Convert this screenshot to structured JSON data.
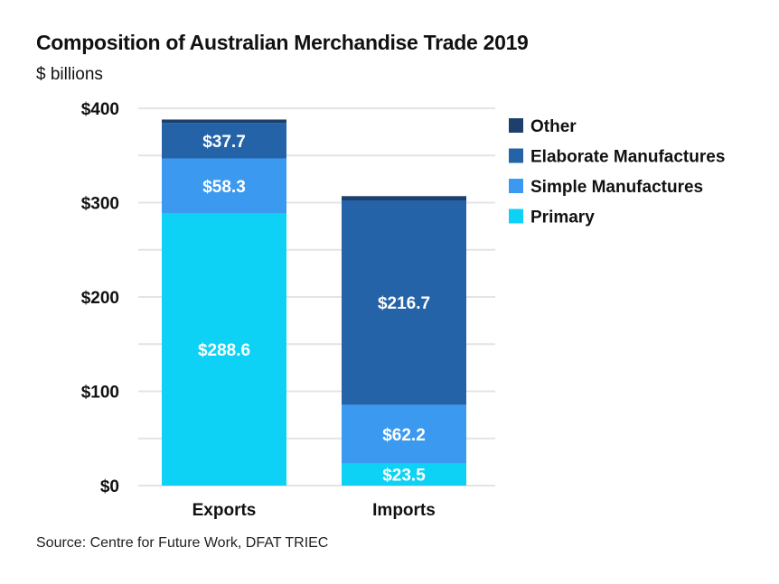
{
  "title": "Composition of Australian Merchandise Trade 2019",
  "subtitle": "$ billions",
  "source": "Source: Centre for Future Work, DFAT TRIEC",
  "chart_data": {
    "type": "bar",
    "stacked": true,
    "categories": [
      "Exports",
      "Imports"
    ],
    "series": [
      {
        "name": "Primary",
        "values": [
          288.6,
          23.5
        ],
        "labels": [
          "$288.6",
          "$23.5"
        ],
        "color": "#0dd2f5"
      },
      {
        "name": "Simple Manufactures",
        "values": [
          58.3,
          62.2
        ],
        "labels": [
          "$58.3",
          "$62.2"
        ],
        "color": "#3b9af0"
      },
      {
        "name": "Elaborate Manufactures",
        "values": [
          37.7,
          216.7
        ],
        "labels": [
          "$37.7",
          "$216.7"
        ],
        "color": "#2563a8"
      },
      {
        "name": "Other",
        "values": [
          3.5,
          4.5
        ],
        "labels": [
          "",
          ""
        ],
        "color": "#1c3f6b"
      }
    ],
    "legend_order": [
      "Other",
      "Elaborate Manufactures",
      "Simple Manufactures",
      "Primary"
    ],
    "legend_position": "top-right",
    "ylim": [
      0,
      400
    ],
    "yticks": [
      0,
      100,
      200,
      300,
      400
    ],
    "ytick_labels": [
      "$0",
      "$100",
      "$200",
      "$300",
      "$400"
    ],
    "grid": true
  }
}
